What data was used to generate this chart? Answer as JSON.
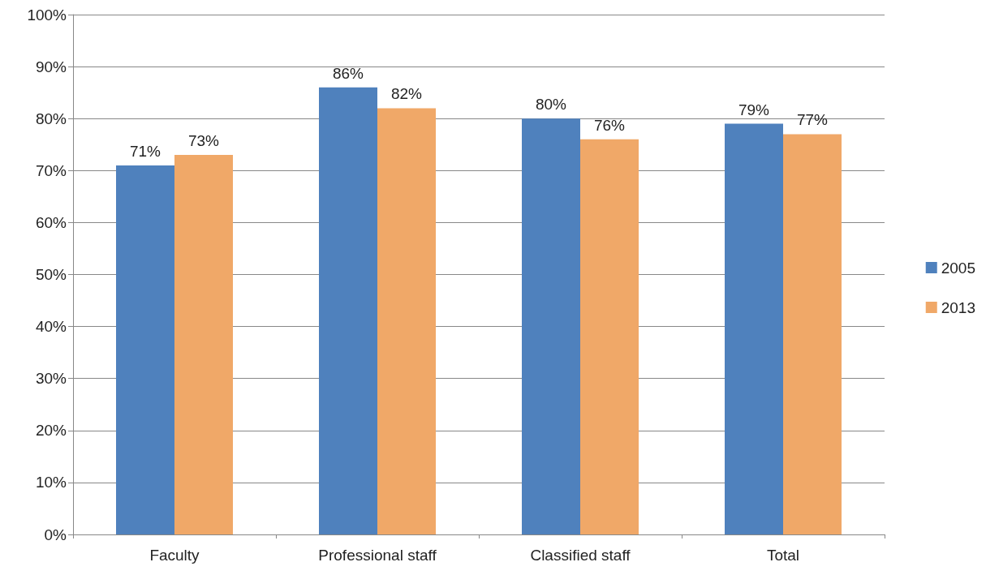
{
  "chart_data": {
    "type": "bar",
    "categories": [
      "Faculty",
      "Professional staff",
      "Classified staff",
      "Total"
    ],
    "series": [
      {
        "name": "2005",
        "color": "#4f81bd",
        "values": [
          71,
          86,
          80,
          79
        ],
        "value_labels": [
          "71%",
          "86%",
          "80%",
          "79%"
        ]
      },
      {
        "name": "2013",
        "color": "#f0a868",
        "values": [
          73,
          82,
          76,
          77
        ],
        "value_labels": [
          "73%",
          "82%",
          "76%",
          "77%"
        ]
      }
    ],
    "ylim": [
      0,
      100
    ],
    "yticks": [
      {
        "value": 0,
        "label": "0%"
      },
      {
        "value": 10,
        "label": "10%"
      },
      {
        "value": 20,
        "label": "20%"
      },
      {
        "value": 30,
        "label": "30%"
      },
      {
        "value": 40,
        "label": "40%"
      },
      {
        "value": 50,
        "label": "50%"
      },
      {
        "value": 60,
        "label": "60%"
      },
      {
        "value": 70,
        "label": "70%"
      },
      {
        "value": 80,
        "label": "80%"
      },
      {
        "value": 90,
        "label": "90%"
      },
      {
        "value": 100,
        "label": "100%"
      }
    ],
    "grid": "y",
    "legend": "right"
  }
}
